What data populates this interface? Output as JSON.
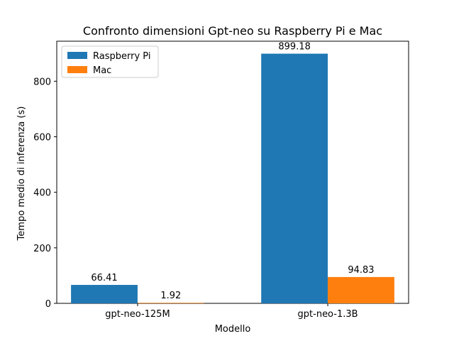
{
  "chart_data": {
    "type": "bar",
    "title": "Confronto dimensioni Gpt-neo su Raspberry Pi e Mac",
    "xlabel": "Modello",
    "ylabel": "Tempo medio di inferenza (s)",
    "categories": [
      "gpt-neo-125M",
      "gpt-neo-1.3B"
    ],
    "series": [
      {
        "name": "Raspberry Pi",
        "values": [
          66.41,
          899.18
        ],
        "color": "#1f77b4"
      },
      {
        "name": "Mac",
        "values": [
          1.92,
          94.83
        ],
        "color": "#ff7f0e"
      }
    ],
    "data_labels": [
      [
        "66.41",
        "899.18"
      ],
      [
        "1.92",
        "94.83"
      ]
    ],
    "ylim": [
      0,
      944.14
    ],
    "yticks": [
      0,
      200,
      400,
      600,
      800
    ],
    "grid": false,
    "legend_position": "upper left"
  }
}
